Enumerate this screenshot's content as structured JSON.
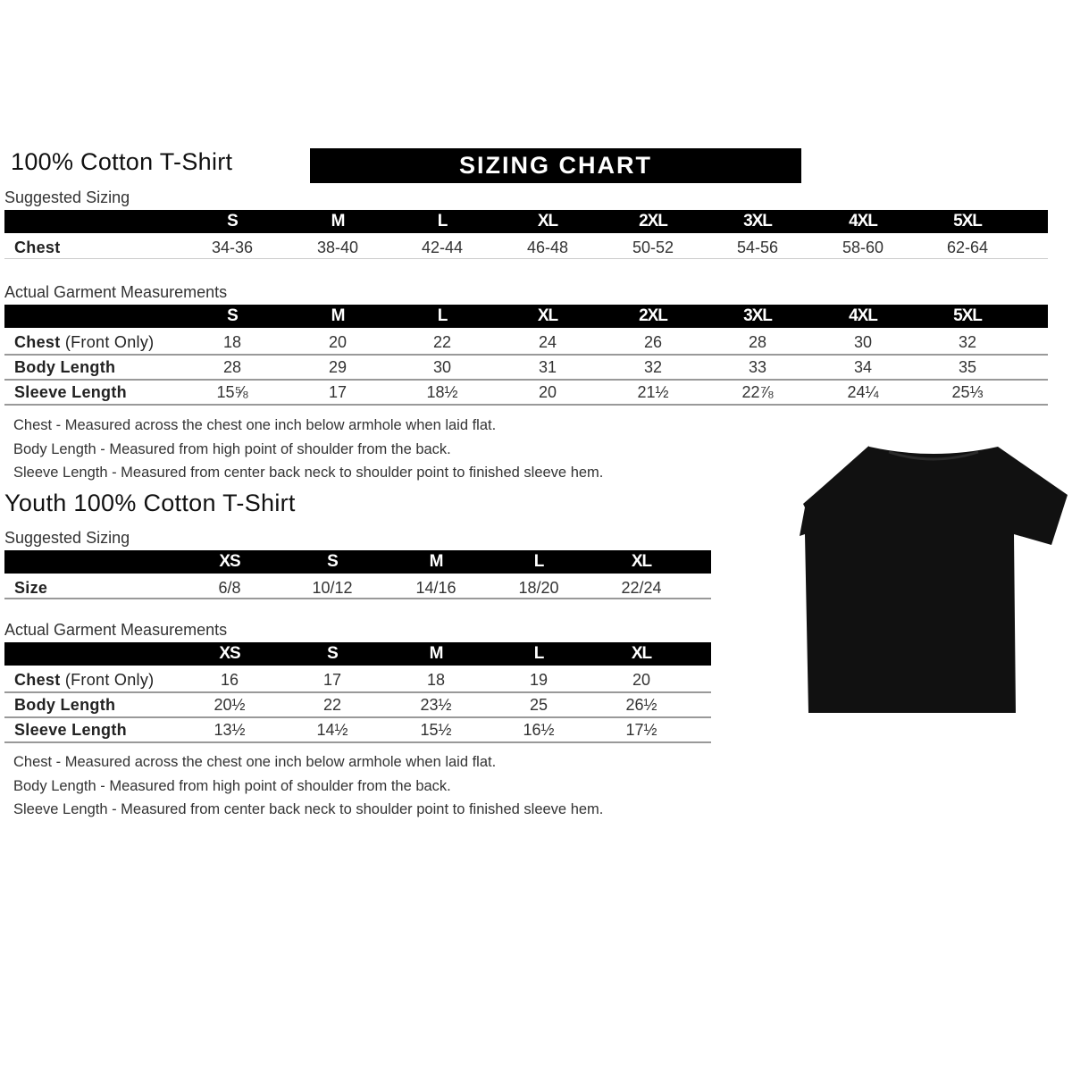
{
  "banner": "SIZING CHART",
  "adult": {
    "title": "100% Cotton T-Shirt",
    "suggested_label": "Suggested Sizing",
    "sizes": [
      "S",
      "M",
      "L",
      "XL",
      "2XL",
      "3XL",
      "4XL",
      "5XL"
    ],
    "suggested_rows": [
      {
        "label": "Chest",
        "values": [
          "34-36",
          "38-40",
          "42-44",
          "46-48",
          "50-52",
          "54-56",
          "58-60",
          "62-64"
        ]
      }
    ],
    "actual_label": "Actual Garment Measurements",
    "actual_rows": [
      {
        "label": "Chest",
        "label_suffix": "(Front Only)",
        "values": [
          "18",
          "20",
          "22",
          "24",
          "26",
          "28",
          "30",
          "32"
        ]
      },
      {
        "label": "Body Length",
        "values": [
          "28",
          "29",
          "30",
          "31",
          "32",
          "33",
          "34",
          "35"
        ]
      },
      {
        "label": "Sleeve Length",
        "values": [
          "15⅝",
          "17",
          "18½",
          "20",
          "21½",
          "22⅞",
          "24¼",
          "25⅓"
        ]
      }
    ],
    "notes": [
      "Chest - Measured across the chest one inch below armhole when laid flat.",
      "Body Length - Measured from high point of shoulder from the back.",
      "Sleeve Length - Measured from center back neck to shoulder point to finished sleeve hem."
    ]
  },
  "youth": {
    "title": "Youth 100% Cotton T-Shirt",
    "suggested_label": "Suggested Sizing",
    "sizes": [
      "XS",
      "S",
      "M",
      "L",
      "XL"
    ],
    "suggested_rows": [
      {
        "label": "Size",
        "values": [
          "6/8",
          "10/12",
          "14/16",
          "18/20",
          "22/24"
        ]
      }
    ],
    "actual_label": "Actual Garment Measurements",
    "actual_rows": [
      {
        "label": "Chest",
        "label_suffix": "(Front Only)",
        "values": [
          "16",
          "17",
          "18",
          "19",
          "20"
        ]
      },
      {
        "label": "Body Length",
        "values": [
          "20½",
          "22",
          "23½",
          "25",
          "26½"
        ]
      },
      {
        "label": "Sleeve Length",
        "values": [
          "13½",
          "14½",
          "15½",
          "16½",
          "17½"
        ]
      }
    ],
    "notes": [
      "Chest - Measured across the chest one inch below armhole when laid flat.",
      "Body Length - Measured from high point of shoulder from the back.",
      "Sleeve Length - Measured from center back neck to shoulder point to finished sleeve hem."
    ]
  },
  "shirt_color": "#111111"
}
